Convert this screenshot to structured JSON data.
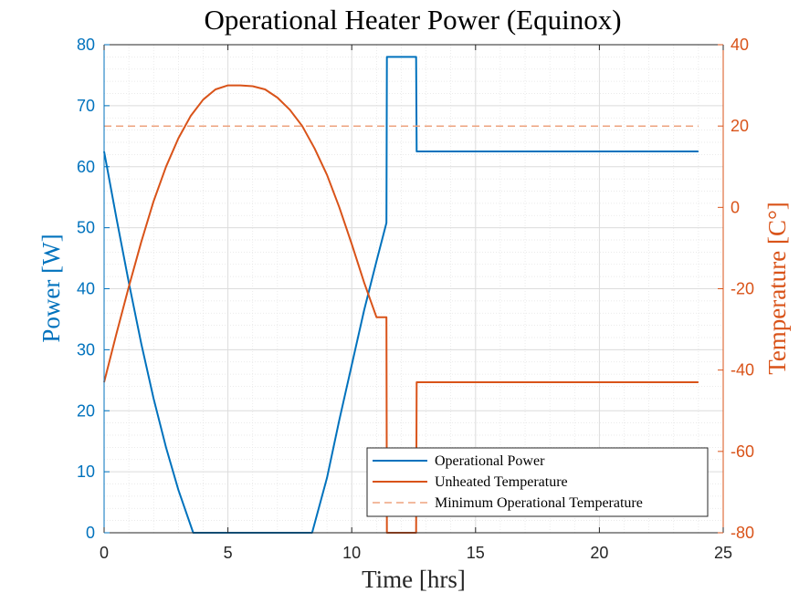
{
  "chart_data": {
    "type": "line",
    "title": "Operational Heater Power (Equinox)",
    "xlabel": "Time [hrs]",
    "ylabel_left": "Power [W]",
    "ylabel_right": "Temperature [C°]",
    "xlim": [
      0,
      25
    ],
    "ylim_left": [
      0,
      80
    ],
    "ylim_right": [
      -80,
      40
    ],
    "xticks": [
      0,
      5,
      10,
      15,
      20,
      25
    ],
    "yticks_left": [
      0,
      10,
      20,
      30,
      40,
      50,
      60,
      70,
      80
    ],
    "yticks_right": [
      -80,
      -60,
      -40,
      -20,
      0,
      20,
      40
    ],
    "grid": true,
    "minor_grid": true,
    "legend_position": "bottom-right",
    "colors": {
      "power": "#0072BD",
      "temperature": "#D95319",
      "min_temp": "#EDA37F",
      "axis_left": "#0072BD",
      "axis_right": "#D95319"
    },
    "series": [
      {
        "name": "Operational Power",
        "axis": "left",
        "style": "solid",
        "x": [
          0,
          0.5,
          1.0,
          1.5,
          2.0,
          2.5,
          3.0,
          3.6,
          8.4,
          9.0,
          9.5,
          10.0,
          10.5,
          11.0,
          11.4,
          11.42,
          12.6,
          12.62,
          24.0
        ],
        "y": [
          62.5,
          51.5,
          41.0,
          31.0,
          22.0,
          14.0,
          7.0,
          0,
          0,
          9.0,
          18.5,
          27.5,
          36.5,
          44.5,
          50.8,
          78.0,
          78.0,
          62.5,
          62.5
        ]
      },
      {
        "name": "Unheated Temperature",
        "axis": "right",
        "style": "solid",
        "x": [
          0,
          0.5,
          1.0,
          1.5,
          2.0,
          2.5,
          3.0,
          3.5,
          4.0,
          4.5,
          5.0,
          5.5,
          6.0,
          6.5,
          7.0,
          7.5,
          8.0,
          8.5,
          9.0,
          9.5,
          10.0,
          10.5,
          11.0,
          11.4,
          11.42,
          12.6,
          12.62,
          24.0
        ],
        "y": [
          -43,
          -31,
          -19.5,
          -8.5,
          1.5,
          10,
          17,
          22.5,
          26.5,
          29,
          30,
          30,
          29.8,
          29,
          27,
          24,
          20,
          14.5,
          8,
          0,
          -9,
          -18.5,
          -27,
          -27,
          -80,
          -80,
          -43,
          -43
        ]
      },
      {
        "name": "Minimum Operational Temperature",
        "axis": "right",
        "style": "dashed",
        "x": [
          0,
          24
        ],
        "y": [
          20,
          20
        ]
      }
    ]
  }
}
